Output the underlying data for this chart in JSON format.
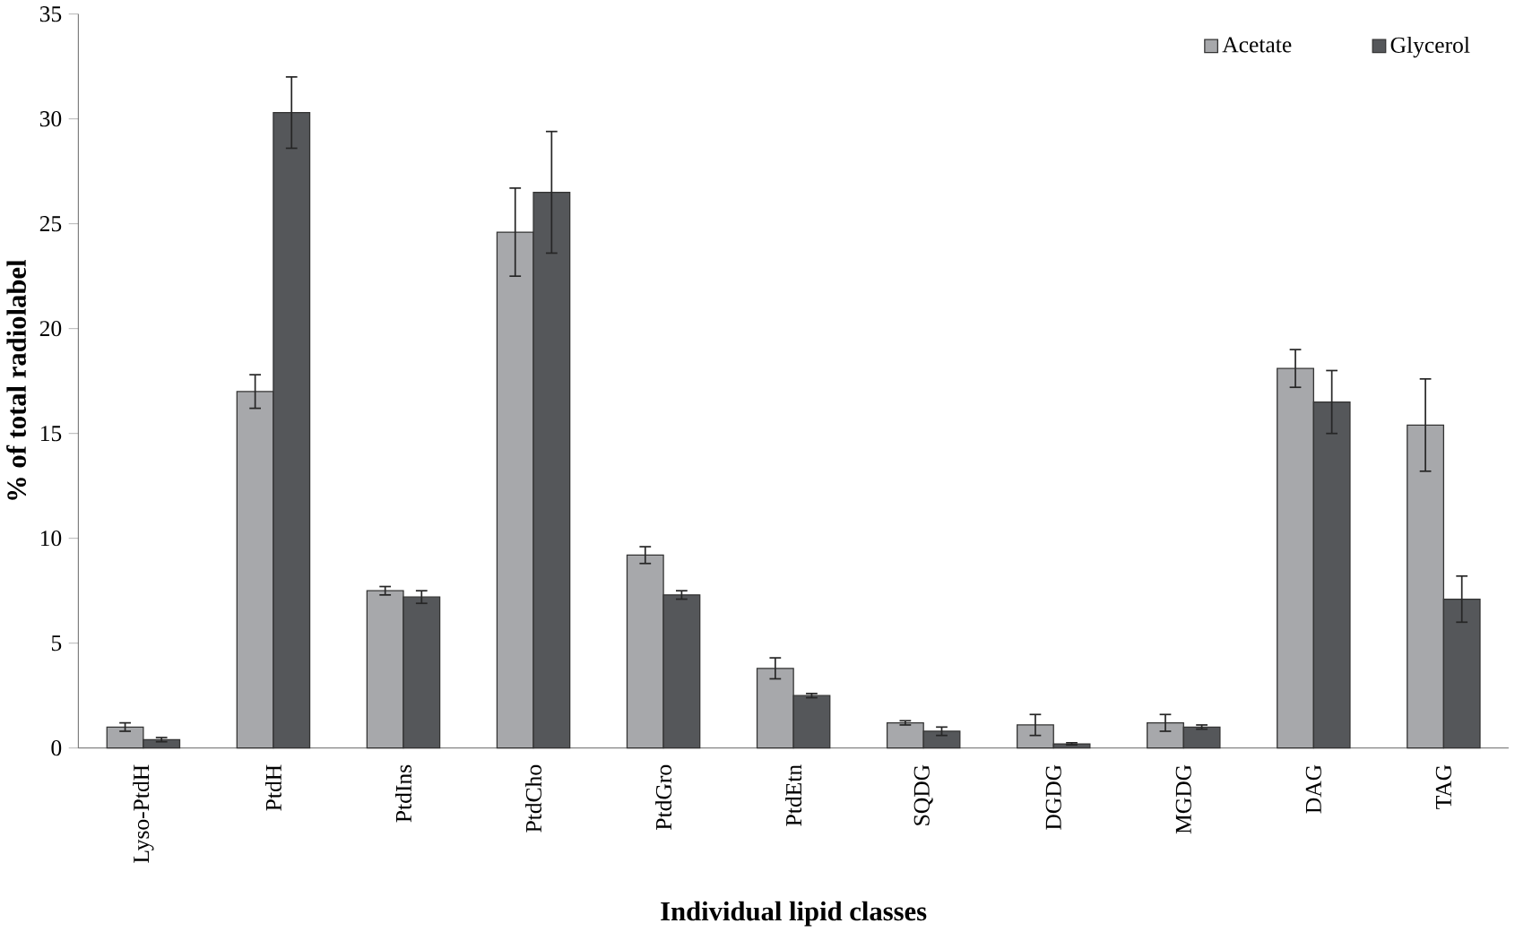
{
  "chart_data": {
    "type": "bar",
    "xlabel": "Individual lipid classes",
    "ylabel": "% of total radiolabel",
    "categories": [
      "Lyso-PtdH",
      "PtdH",
      "PtdIns",
      "PtdCho",
      "PtdGro",
      "PtdEtn",
      "SQDG",
      "DGDG",
      "MGDG",
      "DAG",
      "TAG"
    ],
    "series": [
      {
        "name": "Acetate",
        "color": "#a7a8ab",
        "values": [
          1.0,
          17.0,
          7.5,
          24.6,
          9.2,
          3.8,
          1.2,
          1.1,
          1.2,
          18.1,
          15.4
        ],
        "errors": [
          0.2,
          0.8,
          0.2,
          2.1,
          0.4,
          0.5,
          0.1,
          0.5,
          0.4,
          0.9,
          2.2
        ]
      },
      {
        "name": "Glycerol",
        "color": "#55575a",
        "values": [
          0.4,
          30.3,
          7.2,
          26.5,
          7.3,
          2.5,
          0.8,
          0.2,
          1.0,
          16.5,
          7.1
        ],
        "errors": [
          0.1,
          1.7,
          0.3,
          2.9,
          0.2,
          0.1,
          0.2,
          0.05,
          0.1,
          1.5,
          1.1
        ]
      }
    ],
    "ylim": [
      0,
      35
    ],
    "yticks": [
      0,
      5,
      10,
      15,
      20,
      25,
      30,
      35
    ],
    "grid": false,
    "legend": "top right"
  }
}
